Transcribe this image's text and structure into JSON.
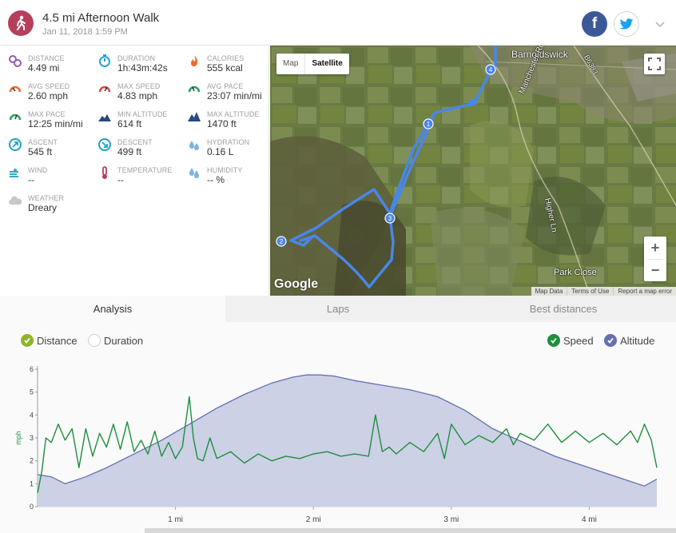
{
  "activity": {
    "title": "4.5 mi Afternoon Walk",
    "datetime": "Jan 11, 2018 1:59 PM",
    "icon": "walking-person-icon",
    "icon_color": "#b5405c"
  },
  "share": {
    "facebook_label": "f",
    "facebook_color": "#3b5998",
    "twitter_color": "#1da1f2"
  },
  "stats": [
    {
      "label": "DISTANCE",
      "value": "4.49 mi",
      "icon": "distance-icon",
      "color": "#8e5bb5"
    },
    {
      "label": "DURATION",
      "value": "1h:43m:42s",
      "icon": "stopwatch-icon",
      "color": "#2a9fd6"
    },
    {
      "label": "CALORIES",
      "value": "555 kcal",
      "icon": "flame-icon",
      "color": "#f06a2b"
    },
    {
      "label": "AVG SPEED",
      "value": "2.60 mph",
      "icon": "speedometer-icon",
      "color": "#f06a2b"
    },
    {
      "label": "MAX SPEED",
      "value": "4.83 mph",
      "icon": "speedometer-max-icon",
      "color": "#e04545"
    },
    {
      "label": "AVG PACE",
      "value": "23:07 min/mi",
      "icon": "pace-gauge-icon",
      "color": "#2aa05a"
    },
    {
      "label": "MAX PACE",
      "value": "12:25 min/mi",
      "icon": "pace-gauge-max-icon",
      "color": "#2aa05a"
    },
    {
      "label": "MIN ALTITUDE",
      "value": "614 ft",
      "icon": "mountain-low-icon",
      "color": "#2a4a80"
    },
    {
      "label": "MAX ALTITUDE",
      "value": "1470 ft",
      "icon": "mountain-high-icon",
      "color": "#2a4a80"
    },
    {
      "label": "ASCENT",
      "value": "545 ft",
      "icon": "ascent-icon",
      "color": "#1fa0c8"
    },
    {
      "label": "DESCENT",
      "value": "499 ft",
      "icon": "descent-icon",
      "color": "#1fa0c8"
    },
    {
      "label": "HYDRATION",
      "value": "0.16 L",
      "icon": "water-drops-icon",
      "color": "#7ab3e0"
    },
    {
      "label": "WIND",
      "value": "--",
      "icon": "wind-icon",
      "color": "#3aa6c9"
    },
    {
      "label": "TEMPERATURE",
      "value": "--",
      "icon": "thermometer-icon",
      "color": "#b5405c"
    },
    {
      "label": "HUMIDITY",
      "value": "-- %",
      "icon": "humidity-drops-icon",
      "color": "#7ab3e0"
    },
    {
      "label": "WEATHER",
      "value": "Dreary",
      "icon": "cloud-icon",
      "color": "#c8c8c8"
    }
  ],
  "map": {
    "toggle_map": "Map",
    "toggle_satellite": "Satellite",
    "place_labels": [
      "Barnoldswick",
      "Manchester Rd",
      "Higher Ln",
      "Park Close",
      "B6383"
    ],
    "route_markers": [
      "4",
      "1",
      "3",
      "2"
    ],
    "attribution": "Google",
    "footer_links": [
      "Map Data",
      "Terms of Use",
      "Report a map error"
    ],
    "zoom_in": "+",
    "zoom_out": "−",
    "route_color": "#4a86e8"
  },
  "tabs": [
    {
      "label": "Analysis",
      "active": true
    },
    {
      "label": "Laps",
      "active": false
    },
    {
      "label": "Best distances",
      "active": false
    }
  ],
  "chart_controls": {
    "distance_label": "Distance",
    "duration_label": "Duration",
    "speed_label": "Speed",
    "altitude_label": "Altitude",
    "distance_checked": true,
    "duration_checked": false,
    "speed_checked": true,
    "altitude_checked": true,
    "distance_color": "#8fb52a",
    "speed_color": "#1e8f3c",
    "altitude_color": "#6470b0"
  },
  "chart_data": {
    "type": "area",
    "ylabel": "mph",
    "ylim": [
      0,
      6
    ],
    "yticks": [
      "0",
      "1",
      "2",
      "3",
      "4",
      "5",
      "6"
    ],
    "xlim": [
      0,
      4.49
    ],
    "xticks": [
      {
        "x": 1,
        "label": "1 mi"
      },
      {
        "x": 2,
        "label": "2 mi"
      },
      {
        "x": 3,
        "label": "3 mi"
      },
      {
        "x": 4,
        "label": "4 mi"
      }
    ],
    "series": [
      {
        "name": "Altitude",
        "type": "area",
        "x": [
          0,
          0.1,
          0.2,
          0.35,
          0.5,
          0.7,
          0.9,
          1.1,
          1.3,
          1.5,
          1.7,
          1.85,
          1.95,
          2.05,
          2.15,
          2.3,
          2.5,
          2.7,
          2.9,
          3.1,
          3.3,
          3.45,
          3.6,
          3.75,
          3.95,
          4.15,
          4.3,
          4.4,
          4.49
        ],
        "values": [
          1.4,
          1.3,
          1.0,
          1.3,
          1.7,
          2.3,
          2.9,
          3.6,
          4.3,
          4.9,
          5.4,
          5.65,
          5.75,
          5.75,
          5.7,
          5.5,
          5.3,
          5.1,
          4.8,
          4.2,
          3.4,
          3.0,
          2.6,
          2.2,
          1.8,
          1.4,
          1.1,
          0.9,
          1.2
        ]
      },
      {
        "name": "Speed",
        "type": "line",
        "x": [
          0,
          0.03,
          0.06,
          0.1,
          0.15,
          0.2,
          0.25,
          0.3,
          0.35,
          0.4,
          0.45,
          0.5,
          0.55,
          0.6,
          0.65,
          0.7,
          0.75,
          0.8,
          0.85,
          0.9,
          0.95,
          1.0,
          1.05,
          1.1,
          1.13,
          1.16,
          1.2,
          1.25,
          1.3,
          1.4,
          1.5,
          1.6,
          1.7,
          1.8,
          1.9,
          2.0,
          2.1,
          2.2,
          2.3,
          2.4,
          2.45,
          2.5,
          2.55,
          2.6,
          2.7,
          2.8,
          2.9,
          2.95,
          3.0,
          3.1,
          3.2,
          3.3,
          3.4,
          3.45,
          3.5,
          3.6,
          3.7,
          3.8,
          3.9,
          4.0,
          4.1,
          4.2,
          4.3,
          4.35,
          4.4,
          4.45,
          4.49
        ],
        "values": [
          0.6,
          1.5,
          3.0,
          2.8,
          3.6,
          2.9,
          3.4,
          1.7,
          3.4,
          2.2,
          3.2,
          2.6,
          3.6,
          2.5,
          3.7,
          2.4,
          2.9,
          2.3,
          3.3,
          2.2,
          2.8,
          2.1,
          2.6,
          4.8,
          3.0,
          2.1,
          2.0,
          3.0,
          2.1,
          2.4,
          1.9,
          2.3,
          2.0,
          2.2,
          2.1,
          2.3,
          2.4,
          2.2,
          2.3,
          2.2,
          4.0,
          2.4,
          2.6,
          2.3,
          2.8,
          2.4,
          3.2,
          2.1,
          3.6,
          2.7,
          3.1,
          2.8,
          3.4,
          2.7,
          3.2,
          2.9,
          3.6,
          2.8,
          3.3,
          2.8,
          3.2,
          2.7,
          3.3,
          2.8,
          3.6,
          2.9,
          1.7
        ]
      }
    ]
  }
}
